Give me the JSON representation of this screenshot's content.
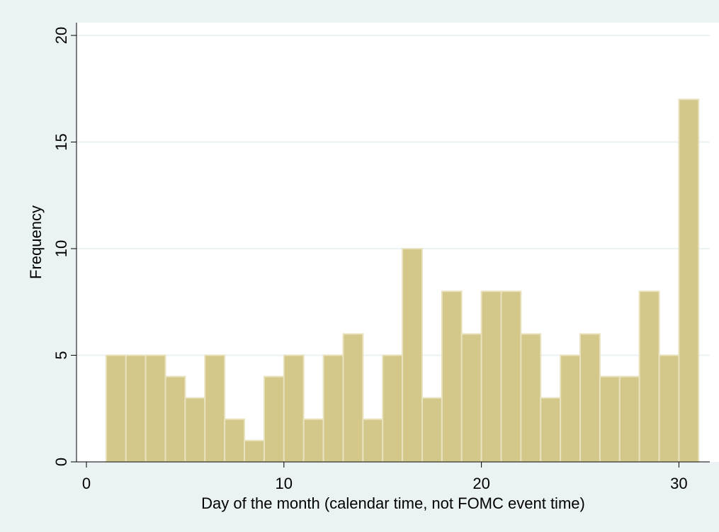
{
  "chart_data": {
    "type": "bar",
    "subtype": "histogram",
    "title": "",
    "xlabel": "Day of the month (calendar time, not FOMC event time)",
    "ylabel": "Frequency",
    "xlim": [
      0,
      31
    ],
    "ylim": [
      0,
      20
    ],
    "x_ticks": [
      0,
      10,
      20,
      30
    ],
    "y_ticks": [
      0,
      5,
      10,
      15,
      20
    ],
    "grid": true,
    "legend": "none",
    "bin_width": 1,
    "bins": [
      {
        "start": 1,
        "end": 2,
        "value": 5
      },
      {
        "start": 2,
        "end": 3,
        "value": 5
      },
      {
        "start": 3,
        "end": 4,
        "value": 5
      },
      {
        "start": 4,
        "end": 5,
        "value": 4
      },
      {
        "start": 5,
        "end": 6,
        "value": 3
      },
      {
        "start": 6,
        "end": 7,
        "value": 5
      },
      {
        "start": 7,
        "end": 8,
        "value": 2
      },
      {
        "start": 8,
        "end": 9,
        "value": 1
      },
      {
        "start": 9,
        "end": 10,
        "value": 4
      },
      {
        "start": 10,
        "end": 11,
        "value": 5
      },
      {
        "start": 11,
        "end": 12,
        "value": 2
      },
      {
        "start": 12,
        "end": 13,
        "value": 5
      },
      {
        "start": 13,
        "end": 14,
        "value": 6
      },
      {
        "start": 14,
        "end": 15,
        "value": 2
      },
      {
        "start": 15,
        "end": 16,
        "value": 5
      },
      {
        "start": 16,
        "end": 17,
        "value": 10
      },
      {
        "start": 17,
        "end": 18,
        "value": 3
      },
      {
        "start": 18,
        "end": 19,
        "value": 8
      },
      {
        "start": 19,
        "end": 20,
        "value": 6
      },
      {
        "start": 20,
        "end": 21,
        "value": 8
      },
      {
        "start": 21,
        "end": 22,
        "value": 8
      },
      {
        "start": 22,
        "end": 23,
        "value": 6
      },
      {
        "start": 23,
        "end": 24,
        "value": 3
      },
      {
        "start": 24,
        "end": 25,
        "value": 5
      },
      {
        "start": 25,
        "end": 26,
        "value": 6
      },
      {
        "start": 26,
        "end": 27,
        "value": 4
      },
      {
        "start": 27,
        "end": 28,
        "value": 4
      },
      {
        "start": 28,
        "end": 29,
        "value": 8
      },
      {
        "start": 29,
        "end": 30,
        "value": 5
      },
      {
        "start": 30,
        "end": 31,
        "value": 17
      }
    ]
  },
  "colors": {
    "outer_background": "#eaf2f3",
    "plot_background": "#ffffff",
    "bar_fill": "#d4c78a",
    "bar_stroke": "#e9e2bf",
    "gridline": "#eaf2f3",
    "axis": "#000000"
  }
}
